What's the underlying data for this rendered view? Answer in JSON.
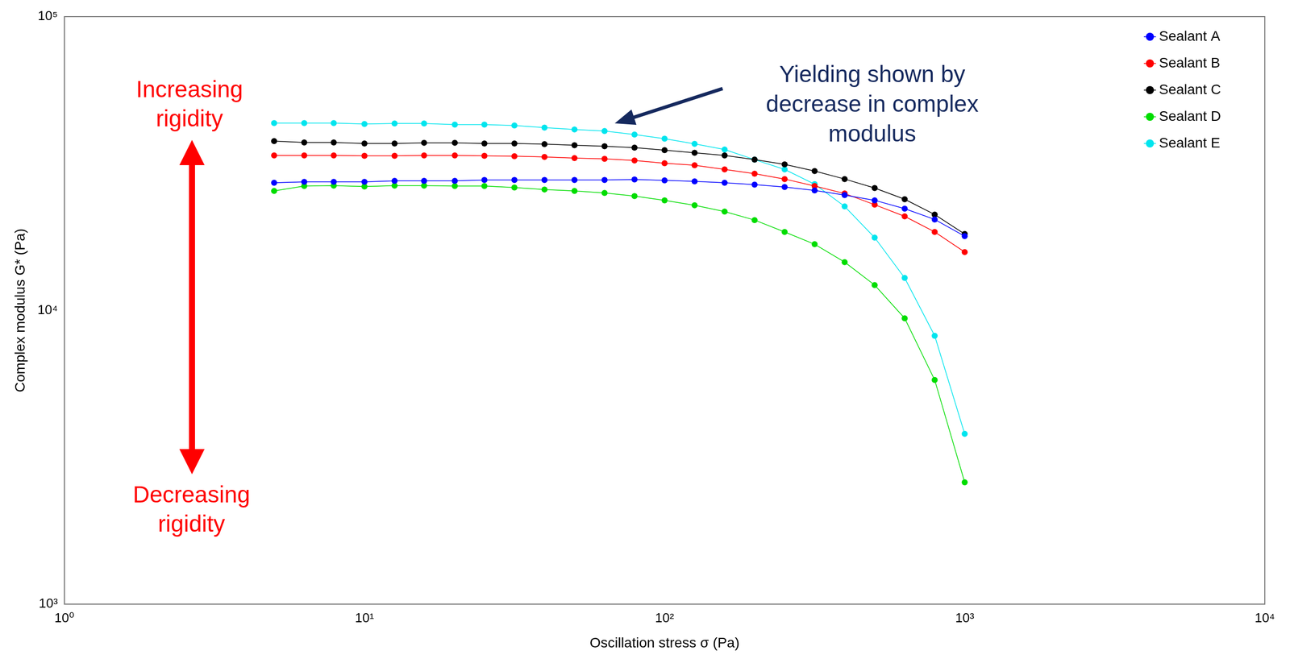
{
  "chart_data": {
    "type": "line",
    "log": true,
    "grid": false,
    "legend": "upper right",
    "marker": "circle",
    "x_label": "Oscillation stress σ (Pa)",
    "y_label": "Complex modulus G* (Pa)",
    "xlim": [
      1,
      10000
    ],
    "ylim": [
      1000,
      100000
    ],
    "xticks": [
      {
        "value": 1,
        "label": "10⁰"
      },
      {
        "value": 10,
        "label": "10¹"
      },
      {
        "value": 100,
        "label": "10²"
      },
      {
        "value": 1000,
        "label": "10³"
      },
      {
        "value": 10000,
        "label": "10⁴"
      }
    ],
    "yticks": [
      {
        "value": 1000,
        "label": "10³"
      },
      {
        "value": 10000,
        "label": "10⁴"
      },
      {
        "value": 100000,
        "label": "10⁵"
      }
    ],
    "x": [
      5,
      6.3,
      7.9,
      10,
      12.6,
      15.8,
      20,
      25.1,
      31.6,
      39.8,
      50.1,
      63.1,
      79.4,
      100,
      125.9,
      158.5,
      199.5,
      251.2,
      316.2,
      398.1,
      501.2,
      631,
      794.3,
      1000
    ],
    "series": [
      {
        "name": "Sealant A",
        "color": "#0000ff",
        "values": [
          27200,
          27400,
          27400,
          27400,
          27600,
          27600,
          27600,
          27800,
          27800,
          27800,
          27800,
          27800,
          27900,
          27700,
          27500,
          27200,
          26800,
          26300,
          25600,
          24700,
          23700,
          22200,
          20400,
          17900
        ]
      },
      {
        "name": "Sealant B",
        "color": "#ff0000",
        "values": [
          33700,
          33700,
          33700,
          33600,
          33600,
          33700,
          33700,
          33600,
          33500,
          33300,
          33000,
          32800,
          32400,
          31700,
          31200,
          30200,
          29200,
          28000,
          26500,
          25000,
          22900,
          20900,
          18500,
          15800
        ]
      },
      {
        "name": "Sealant C",
        "color": "#000000",
        "values": [
          37700,
          37300,
          37300,
          37000,
          37000,
          37200,
          37200,
          37000,
          37000,
          36800,
          36500,
          36200,
          35800,
          35100,
          34400,
          33700,
          32600,
          31400,
          29800,
          28000,
          26100,
          23900,
          21200,
          18200
        ]
      },
      {
        "name": "Sealant D",
        "color": "#00dd00",
        "values": [
          25500,
          26500,
          26600,
          26400,
          26600,
          26600,
          26500,
          26500,
          26200,
          25800,
          25500,
          25100,
          24500,
          23700,
          22800,
          21700,
          20300,
          18500,
          16800,
          14600,
          12200,
          9400,
          5800,
          2600
        ]
      },
      {
        "name": "Sealant E",
        "color": "#00e5ee",
        "values": [
          43400,
          43400,
          43400,
          43100,
          43300,
          43300,
          42900,
          42900,
          42600,
          41900,
          41300,
          40800,
          39700,
          38400,
          36900,
          35300,
          32600,
          30200,
          26900,
          22600,
          17700,
          12900,
          8200,
          3800
        ]
      }
    ],
    "annotations": [
      {
        "text": [
          "Increasing",
          "rigidity"
        ],
        "color": "#ff0000"
      },
      {
        "text": [
          "Decreasing",
          "rigidity"
        ],
        "color": "#ff0000"
      },
      {
        "text": [
          "Yielding shown by",
          "decrease in complex",
          "modulus"
        ],
        "color": "#15295e"
      }
    ]
  }
}
